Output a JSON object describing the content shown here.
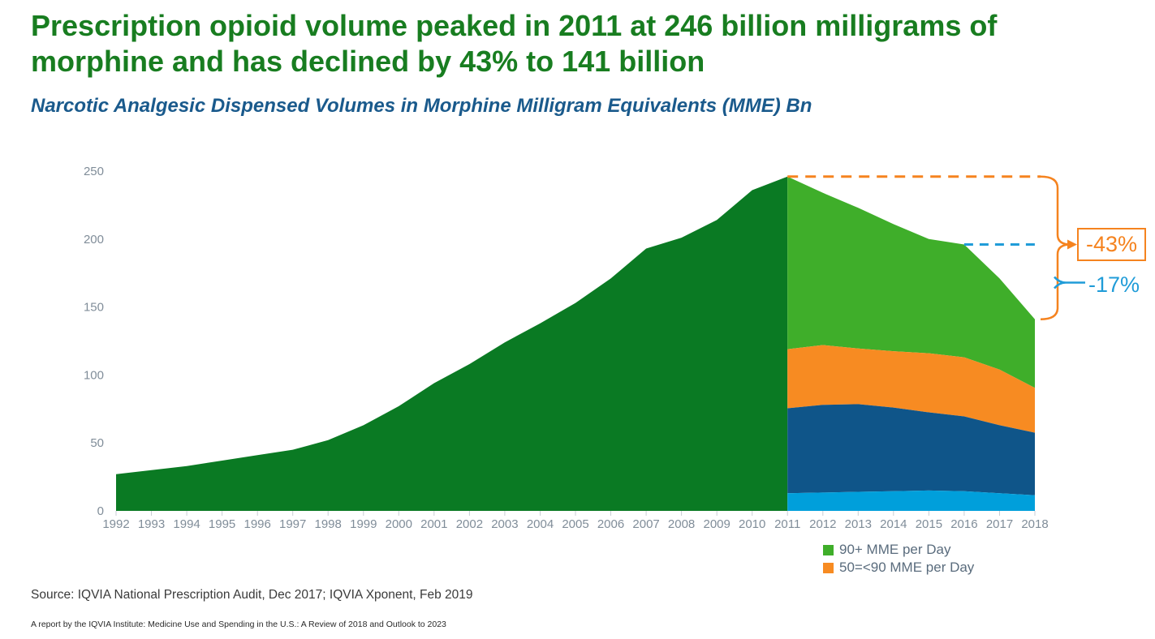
{
  "header": {
    "title": "Prescription opioid volume peaked in 2011 at 246 billion milligrams of morphine and has declined by 43% to 141 billion",
    "subtitle": "Narcotic Analgesic Dispensed Volumes in Morphine Milligram Equivalents (MME) Bn"
  },
  "chart_data": {
    "type": "area",
    "x": [
      1992,
      1993,
      1994,
      1995,
      1996,
      1997,
      1998,
      1999,
      2000,
      2001,
      2002,
      2003,
      2004,
      2005,
      2006,
      2007,
      2008,
      2009,
      2010,
      2011,
      2012,
      2013,
      2014,
      2015,
      2016,
      2017,
      2018
    ],
    "ylim": [
      0,
      250
    ],
    "yticks": [
      0,
      50,
      100,
      150,
      200,
      250
    ],
    "grid": false,
    "legend_position": "bottom-right",
    "total_mme_bn": [
      27,
      30,
      33,
      37,
      41,
      45,
      52,
      63,
      77,
      94,
      108,
      124,
      138,
      153,
      171,
      193,
      201,
      214,
      236,
      246,
      234,
      223,
      211,
      200,
      196,
      171,
      141
    ],
    "split_start_year": 2011,
    "stacked_cumulative_from_2011": {
      "years": [
        2011,
        2012,
        2013,
        2014,
        2015,
        2016,
        2017,
        2018
      ],
      "light_blue_top": [
        13,
        13.5,
        14,
        14.5,
        15,
        14.5,
        13,
        11.5
      ],
      "dark_blue_top": [
        75.5,
        78,
        78.5,
        76,
        72.5,
        69.5,
        63,
        57.5
      ],
      "orange_top_50_to_90_mme": [
        119,
        122,
        119.5,
        117.5,
        116,
        113,
        104,
        90.5
      ],
      "green_top_90plus_mme": [
        246,
        234,
        223,
        211,
        200,
        196,
        171,
        141
      ]
    },
    "annotations": {
      "peak_dashed_value": 246,
      "mid_dashed_value": 196,
      "mid_dashed_start_year": 2016,
      "end_value": 141,
      "total_decline_label": "-43%",
      "recent_decline_label": "-17%"
    }
  },
  "legend": [
    {
      "label": "90+ MME per Day",
      "color": "#3FAE2A"
    },
    {
      "label": "50=<90 MME per Day",
      "color": "#F78B22"
    }
  ],
  "colors": {
    "title_green": "#187D20",
    "subtitle_blue": "#1A5A8C",
    "dark_green_area": "#0A7A23",
    "light_green_area": "#3FAE2A",
    "orange_area": "#F78B22",
    "dark_blue_area": "#0F5589",
    "light_blue_area": "#009FDB",
    "annotation_orange": "#F5831F",
    "annotation_blue": "#209CD8",
    "axis_text": "#808D99",
    "tick_mark": "#C9CED4",
    "legend_text": "#5A6C7D"
  },
  "source": "Source: IQVIA National Prescription Audit, Dec 2017; IQVIA Xponent, Feb 2019",
  "footer": "A report by the IQVIA Institute: Medicine Use and Spending in the U.S.: A Review of 2018 and Outlook to 2023"
}
